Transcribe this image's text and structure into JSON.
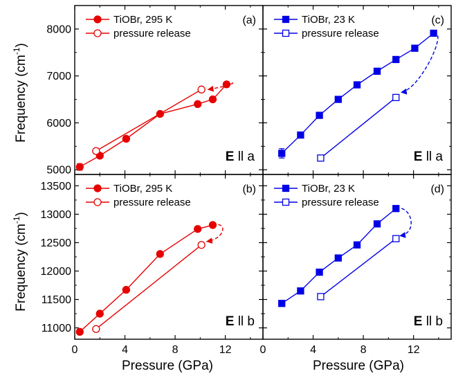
{
  "figure": {
    "ylabel_text": "Frequency (cm",
    "ylabel_sup": "-1",
    "ylabel_close": ")",
    "xlabel": "Pressure (GPa)",
    "colors": {
      "red": "#e60000",
      "blue": "#0000e6",
      "axis": "#000000"
    }
  },
  "chart_data": [
    {
      "id": "a",
      "type": "line",
      "panel_label": "(a)",
      "polarization": [
        "E",
        " ll a"
      ],
      "xlim": [
        0,
        15
      ],
      "ylim": [
        4900,
        8500
      ],
      "yticks": [
        5000,
        6000,
        7000,
        8000
      ],
      "xticks": [
        0,
        4,
        8,
        12
      ],
      "color": "red",
      "marker": "circle",
      "series": [
        {
          "name": "TiOBr, 295 K",
          "filled": true,
          "x": [
            0.4,
            2.0,
            4.1,
            6.8,
            9.8,
            11.0,
            12.1
          ],
          "y": [
            5060,
            5300,
            5660,
            6190,
            6400,
            6500,
            6820
          ],
          "errors": [
            70,
            0,
            0,
            0,
            0,
            0,
            0
          ]
        },
        {
          "name": "pressure release",
          "filled": false,
          "x": [
            1.7,
            10.1
          ],
          "y": [
            5400,
            6710
          ],
          "errors": [
            0,
            0
          ]
        }
      ],
      "dashed_curve": {
        "from": [
          12.1,
          6820
        ],
        "to": [
          10.6,
          6710
        ]
      }
    },
    {
      "id": "c",
      "type": "line",
      "panel_label": "(c)",
      "polarization": [
        "E",
        " ll a"
      ],
      "xlim": [
        0,
        15
      ],
      "ylim": [
        4900,
        8500
      ],
      "yticks": [
        5000,
        6000,
        7000,
        8000
      ],
      "xticks": [
        0,
        4,
        8,
        12
      ],
      "color": "blue",
      "marker": "square",
      "series": [
        {
          "name": "TiOBr, 23 K",
          "filled": true,
          "x": [
            1.5,
            3.0,
            4.5,
            6.0,
            7.5,
            9.1,
            10.6,
            12.1,
            13.6
          ],
          "y": [
            5350,
            5740,
            6160,
            6500,
            6810,
            7100,
            7350,
            7590,
            7910
          ],
          "errors": [
            100,
            0,
            0,
            0,
            0,
            0,
            0,
            0,
            0
          ]
        },
        {
          "name": "pressure release",
          "filled": false,
          "x": [
            4.6,
            10.6
          ],
          "y": [
            5250,
            6540
          ],
          "errors": [
            0,
            0
          ]
        }
      ],
      "dashed_curve": {
        "from": [
          13.6,
          7910
        ],
        "to": [
          11.0,
          6650
        ]
      }
    },
    {
      "id": "b",
      "type": "line",
      "panel_label": "(b)",
      "polarization": [
        "E",
        " ll b"
      ],
      "xlim": [
        0,
        15
      ],
      "ylim": [
        10800,
        13700
      ],
      "yticks": [
        11000,
        11500,
        12000,
        12500,
        13000,
        13500
      ],
      "xticks": [
        0,
        4,
        8,
        12
      ],
      "color": "red",
      "marker": "circle",
      "series": [
        {
          "name": "TiOBr, 295 K",
          "filled": true,
          "x": [
            0.4,
            2.0,
            4.1,
            6.8,
            9.8,
            11.0
          ],
          "y": [
            10930,
            11250,
            11670,
            12300,
            12740,
            12810
          ],
          "errors": [
            0,
            0,
            0,
            0,
            0,
            0
          ]
        },
        {
          "name": "pressure release",
          "filled": false,
          "x": [
            1.7,
            10.1
          ],
          "y": [
            10980,
            12460
          ],
          "errors": [
            0,
            0
          ]
        }
      ],
      "dashed_curve": {
        "from": [
          11.0,
          12810
        ],
        "to": [
          10.5,
          12520
        ]
      }
    },
    {
      "id": "d",
      "type": "line",
      "panel_label": "(d)",
      "polarization": [
        "E",
        " ll b"
      ],
      "xlim": [
        0,
        15
      ],
      "ylim": [
        10800,
        13700
      ],
      "yticks": [
        11000,
        11500,
        12000,
        12500,
        13000,
        13500
      ],
      "xticks": [
        0,
        4,
        8,
        12
      ],
      "color": "blue",
      "marker": "square",
      "series": [
        {
          "name": "TiOBr, 23 K",
          "filled": true,
          "x": [
            1.5,
            3.0,
            4.5,
            6.0,
            7.5,
            9.1,
            10.6
          ],
          "y": [
            11430,
            11650,
            11980,
            12230,
            12460,
            12830,
            13100
          ],
          "errors": [
            0,
            0,
            0,
            0,
            0,
            0,
            0
          ]
        },
        {
          "name": "pressure release",
          "filled": false,
          "x": [
            4.6,
            10.6
          ],
          "y": [
            11550,
            12570
          ],
          "errors": [
            0,
            0
          ]
        }
      ],
      "dashed_curve": {
        "from": [
          10.6,
          13100
        ],
        "to": [
          10.9,
          12620
        ]
      }
    }
  ]
}
